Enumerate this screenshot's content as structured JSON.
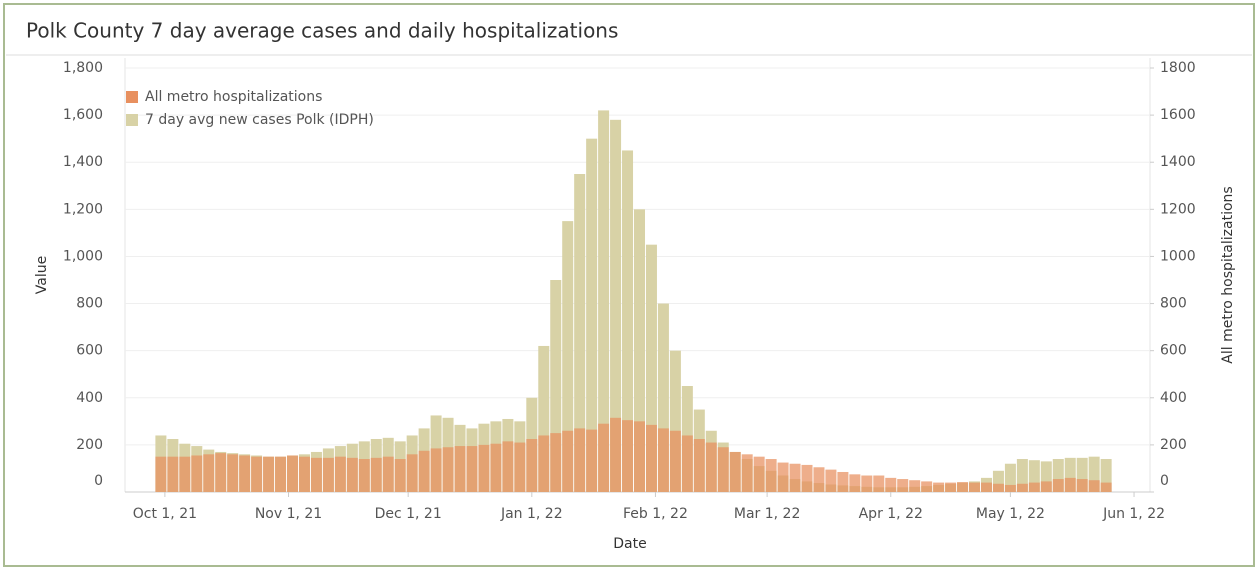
{
  "chart_data": {
    "type": "bar",
    "title": "Polk County 7 day average cases and daily hospitalizations",
    "x_label": "Date",
    "y_label": "Value",
    "y2_label": "All metro hospitalizations",
    "x": [
      "2021-09-30",
      "2021-10-03",
      "2021-10-06",
      "2021-10-09",
      "2021-10-12",
      "2021-10-15",
      "2021-10-18",
      "2021-10-21",
      "2021-10-24",
      "2021-10-27",
      "2021-10-30",
      "2021-11-02",
      "2021-11-05",
      "2021-11-08",
      "2021-11-11",
      "2021-11-14",
      "2021-11-17",
      "2021-11-20",
      "2021-11-23",
      "2021-11-26",
      "2021-11-29",
      "2021-12-02",
      "2021-12-05",
      "2021-12-08",
      "2021-12-11",
      "2021-12-14",
      "2021-12-17",
      "2021-12-20",
      "2021-12-23",
      "2021-12-26",
      "2021-12-29",
      "2022-01-01",
      "2022-01-04",
      "2022-01-07",
      "2022-01-10",
      "2022-01-13",
      "2022-01-16",
      "2022-01-19",
      "2022-01-22",
      "2022-01-25",
      "2022-01-28",
      "2022-01-31",
      "2022-02-03",
      "2022-02-06",
      "2022-02-09",
      "2022-02-12",
      "2022-02-15",
      "2022-02-18",
      "2022-02-21",
      "2022-02-24",
      "2022-02-27",
      "2022-03-02",
      "2022-03-05",
      "2022-03-08",
      "2022-03-11",
      "2022-03-14",
      "2022-03-17",
      "2022-03-20",
      "2022-03-23",
      "2022-03-26",
      "2022-03-29",
      "2022-04-01",
      "2022-04-04",
      "2022-04-07",
      "2022-04-10",
      "2022-04-13",
      "2022-04-16",
      "2022-04-19",
      "2022-04-22",
      "2022-04-25",
      "2022-04-28",
      "2022-05-01",
      "2022-05-04",
      "2022-05-07",
      "2022-05-10",
      "2022-05-13",
      "2022-05-16",
      "2022-05-19",
      "2022-05-22",
      "2022-05-25"
    ],
    "series": [
      {
        "name": "All metro hospitalizations",
        "color": "#e8905f",
        "axis": "y2",
        "values": [
          150,
          150,
          150,
          155,
          160,
          165,
          160,
          155,
          150,
          150,
          150,
          155,
          150,
          145,
          145,
          150,
          145,
          140,
          145,
          150,
          140,
          160,
          175,
          185,
          190,
          195,
          195,
          200,
          205,
          215,
          210,
          225,
          240,
          250,
          260,
          270,
          265,
          290,
          315,
          305,
          300,
          285,
          270,
          260,
          240,
          225,
          210,
          190,
          170,
          160,
          150,
          140,
          125,
          120,
          115,
          105,
          95,
          85,
          75,
          70,
          70,
          60,
          55,
          50,
          45,
          40,
          40,
          42,
          40,
          40,
          35,
          30,
          35,
          40,
          45,
          55,
          60,
          55,
          50,
          40
        ]
      },
      {
        "name": "7 day avg new cases Polk (IDPH)",
        "color": "#d8d2a6",
        "values": [
          240,
          225,
          205,
          195,
          180,
          170,
          165,
          160,
          155,
          150,
          150,
          155,
          160,
          170,
          185,
          195,
          205,
          215,
          225,
          230,
          215,
          240,
          270,
          325,
          315,
          285,
          270,
          290,
          300,
          310,
          300,
          400,
          620,
          900,
          1150,
          1350,
          1500,
          1620,
          1580,
          1450,
          1200,
          1050,
          800,
          600,
          450,
          350,
          260,
          210,
          170,
          140,
          110,
          90,
          70,
          55,
          45,
          38,
          32,
          28,
          25,
          22,
          20,
          20,
          20,
          22,
          25,
          30,
          35,
          40,
          45,
          60,
          90,
          120,
          140,
          135,
          130,
          140,
          145,
          145,
          150,
          140
        ]
      }
    ],
    "xlim": [
      "2021-09-21",
      "2022-06-05"
    ],
    "xticks": [
      {
        "value": "2021-10-01",
        "label": "Oct 1, 21"
      },
      {
        "value": "2021-11-01",
        "label": "Nov 1, 21"
      },
      {
        "value": "2021-12-01",
        "label": "Dec 1, 21"
      },
      {
        "value": "2022-01-01",
        "label": "Jan 1, 22"
      },
      {
        "value": "2022-02-01",
        "label": "Feb 1, 22"
      },
      {
        "value": "2022-03-01",
        "label": "Mar 1, 22"
      },
      {
        "value": "2022-04-01",
        "label": "Apr 1, 22"
      },
      {
        "value": "2022-05-01",
        "label": "May 1, 22"
      },
      {
        "value": "2022-06-01",
        "label": "Jun 1, 22"
      }
    ],
    "ylim": [
      0,
      1800
    ],
    "yticks": [
      0,
      {
        "value": 200,
        "label": "200"
      },
      400,
      600,
      800,
      {
        "value": 1000,
        "label": "1,000"
      },
      {
        "value": 1200,
        "label": "1,200"
      },
      {
        "value": 1400,
        "label": "1,400"
      },
      {
        "value": 1600,
        "label": "1,600"
      },
      {
        "value": 1800,
        "label": "1,800"
      }
    ],
    "y2lim": [
      0,
      1800
    ],
    "y2ticks": [
      0,
      200,
      400,
      600,
      800,
      1000,
      1200,
      1400,
      1600,
      1800
    ],
    "grid": true,
    "legend": "upper left"
  }
}
